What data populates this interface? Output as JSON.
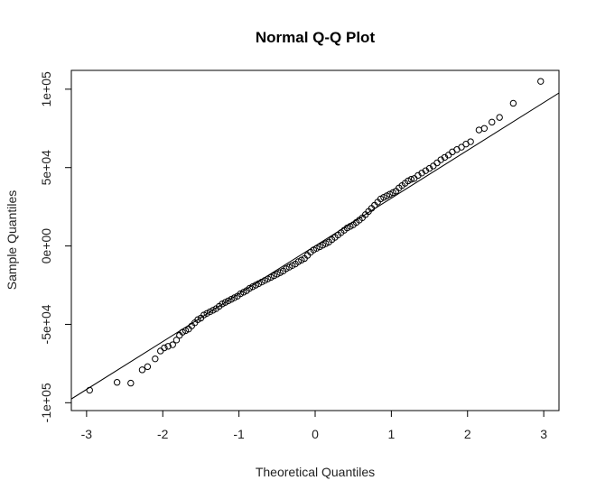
{
  "chart_data": {
    "type": "scatter",
    "title": "Normal Q-Q Plot",
    "xlabel": "Theoretical Quantiles",
    "ylabel": "Sample Quantiles",
    "xlim": [
      -3.2,
      3.2
    ],
    "ylim": [
      -105000,
      112000
    ],
    "x_ticks": [
      -3,
      -2,
      -1,
      0,
      1,
      2,
      3
    ],
    "x_tick_labels": [
      "-3",
      "-2",
      "-1",
      "0",
      "1",
      "2",
      "3"
    ],
    "y_ticks": [
      -100000,
      -50000,
      0,
      50000,
      100000
    ],
    "y_tick_labels": [
      "-1e+05",
      "-5e+04",
      "0e+00",
      "5e+04",
      "1e+05"
    ],
    "grid": false,
    "reference_line": {
      "intercept": 0,
      "slope": 30500
    },
    "marker": "open-circle",
    "points": [
      [
        -2.96,
        -92000
      ],
      [
        -2.6,
        -87000
      ],
      [
        -2.42,
        -87500
      ],
      [
        -2.27,
        -79000
      ],
      [
        -2.2,
        -77000
      ],
      [
        -2.1,
        -72000
      ],
      [
        -2.03,
        -67000
      ],
      [
        -1.98,
        -65000
      ],
      [
        -1.93,
        -64000
      ],
      [
        -1.87,
        -63000
      ],
      [
        -1.82,
        -60000
      ],
      [
        -1.78,
        -57000
      ],
      [
        -1.74,
        -55000
      ],
      [
        -1.7,
        -54000
      ],
      [
        -1.66,
        -53000
      ],
      [
        -1.62,
        -51000
      ],
      [
        -1.58,
        -49000
      ],
      [
        -1.54,
        -47000
      ],
      [
        -1.5,
        -46000
      ],
      [
        -1.46,
        -44000
      ],
      [
        -1.42,
        -43000
      ],
      [
        -1.38,
        -42000
      ],
      [
        -1.34,
        -41000
      ],
      [
        -1.3,
        -40000
      ],
      [
        -1.26,
        -38500
      ],
      [
        -1.22,
        -37000
      ],
      [
        -1.18,
        -36000
      ],
      [
        -1.14,
        -35000
      ],
      [
        -1.1,
        -34000
      ],
      [
        -1.06,
        -33000
      ],
      [
        -1.02,
        -32000
      ],
      [
        -0.98,
        -30500
      ],
      [
        -0.94,
        -29500
      ],
      [
        -0.9,
        -28500
      ],
      [
        -0.86,
        -27000
      ],
      [
        -0.82,
        -26000
      ],
      [
        -0.78,
        -25000
      ],
      [
        -0.74,
        -24000
      ],
      [
        -0.7,
        -23000
      ],
      [
        -0.66,
        -22000
      ],
      [
        -0.62,
        -21000
      ],
      [
        -0.58,
        -20000
      ],
      [
        -0.54,
        -19000
      ],
      [
        -0.5,
        -18000
      ],
      [
        -0.46,
        -17000
      ],
      [
        -0.42,
        -16000
      ],
      [
        -0.38,
        -14500
      ],
      [
        -0.34,
        -13500
      ],
      [
        -0.3,
        -12500
      ],
      [
        -0.26,
        -11500
      ],
      [
        -0.22,
        -10000
      ],
      [
        -0.18,
        -9000
      ],
      [
        -0.14,
        -8000
      ],
      [
        -0.1,
        -6000
      ],
      [
        -0.06,
        -4000
      ],
      [
        -0.02,
        -2500
      ],
      [
        0.02,
        -1500
      ],
      [
        0.06,
        -500
      ],
      [
        0.1,
        500
      ],
      [
        0.14,
        1500
      ],
      [
        0.18,
        2500
      ],
      [
        0.22,
        4000
      ],
      [
        0.26,
        5500
      ],
      [
        0.3,
        7000
      ],
      [
        0.34,
        8500
      ],
      [
        0.38,
        10000
      ],
      [
        0.42,
        11500
      ],
      [
        0.46,
        12500
      ],
      [
        0.5,
        13500
      ],
      [
        0.54,
        15000
      ],
      [
        0.58,
        16500
      ],
      [
        0.62,
        18000
      ],
      [
        0.66,
        20000
      ],
      [
        0.7,
        22000
      ],
      [
        0.74,
        24000
      ],
      [
        0.78,
        26000
      ],
      [
        0.82,
        28000
      ],
      [
        0.86,
        30000
      ],
      [
        0.9,
        31000
      ],
      [
        0.94,
        32000
      ],
      [
        0.98,
        33000
      ],
      [
        1.02,
        34000
      ],
      [
        1.06,
        35000
      ],
      [
        1.1,
        37000
      ],
      [
        1.14,
        38500
      ],
      [
        1.18,
        40000
      ],
      [
        1.22,
        41500
      ],
      [
        1.26,
        42500
      ],
      [
        1.3,
        43000
      ],
      [
        1.35,
        45000
      ],
      [
        1.4,
        46500
      ],
      [
        1.45,
        48000
      ],
      [
        1.5,
        49500
      ],
      [
        1.55,
        51000
      ],
      [
        1.6,
        53000
      ],
      [
        1.65,
        55000
      ],
      [
        1.7,
        56500
      ],
      [
        1.75,
        58000
      ],
      [
        1.8,
        60000
      ],
      [
        1.86,
        61500
      ],
      [
        1.92,
        63000
      ],
      [
        1.98,
        65000
      ],
      [
        2.04,
        66500
      ],
      [
        2.15,
        74000
      ],
      [
        2.22,
        75000
      ],
      [
        2.32,
        79000
      ],
      [
        2.42,
        82000
      ],
      [
        2.6,
        91000
      ],
      [
        2.96,
        105000
      ]
    ]
  }
}
